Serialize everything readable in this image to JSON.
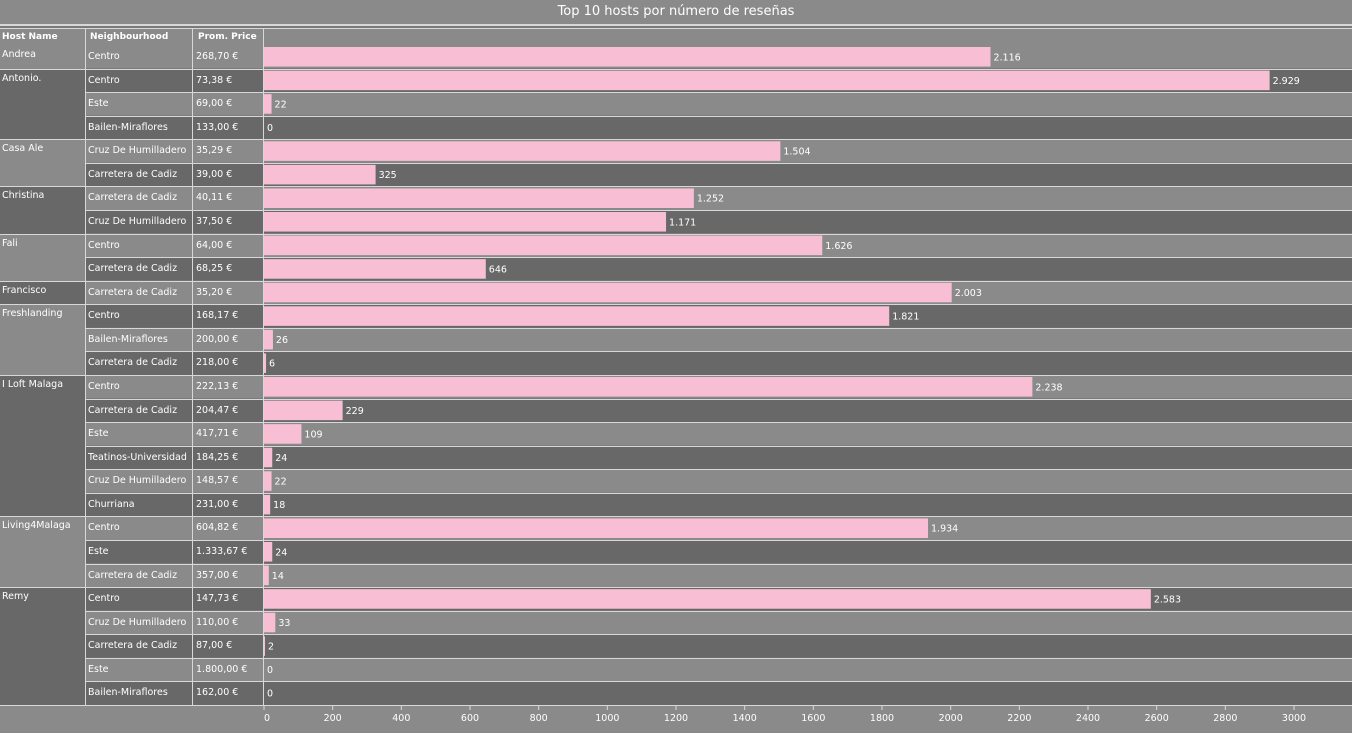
{
  "title": "Top 10 hosts por número de reseñas",
  "headers": {
    "host": "Host Name",
    "neighbourhood": "Neighbourhood",
    "price": "Prom. Price"
  },
  "colors": {
    "bar": "#f8bfd4",
    "band_light": "#8a8a8a",
    "band_dark": "#686868",
    "line": "#d8d8d8"
  },
  "chart_data": {
    "type": "bar",
    "orientation": "horizontal",
    "title": "Top 10 hosts por número de reseñas",
    "xlim": [
      0,
      3250
    ],
    "x_ticks": [
      0,
      200,
      400,
      600,
      800,
      1000,
      1200,
      1400,
      1600,
      1800,
      2000,
      2200,
      2400,
      2600,
      2800,
      3000
    ],
    "grid": false,
    "groups": [
      {
        "host": "Andrea",
        "rows": [
          {
            "neighbourhood": "Centro",
            "price": "268,70 €",
            "value": 2116,
            "label": "2.116"
          }
        ]
      },
      {
        "host": "Antonio.",
        "rows": [
          {
            "neighbourhood": "Centro",
            "price": "73,38 €",
            "value": 2929,
            "label": "2.929"
          },
          {
            "neighbourhood": "Este",
            "price": "69,00 €",
            "value": 22,
            "label": "22"
          },
          {
            "neighbourhood": "Bailen-Miraflores",
            "price": "133,00 €",
            "value": 0,
            "label": "0"
          }
        ]
      },
      {
        "host": "Casa Ale",
        "rows": [
          {
            "neighbourhood": "Cruz De Humilladero",
            "price": "35,29 €",
            "value": 1504,
            "label": "1.504"
          },
          {
            "neighbourhood": "Carretera de Cadiz",
            "price": "39,00 €",
            "value": 325,
            "label": "325"
          }
        ]
      },
      {
        "host": "Christina",
        "rows": [
          {
            "neighbourhood": "Carretera de Cadiz",
            "price": "40,11 €",
            "value": 1252,
            "label": "1.252"
          },
          {
            "neighbourhood": "Cruz De Humilladero",
            "price": "37,50 €",
            "value": 1171,
            "label": "1.171"
          }
        ]
      },
      {
        "host": "Fali",
        "rows": [
          {
            "neighbourhood": "Centro",
            "price": "64,00 €",
            "value": 1626,
            "label": "1.626"
          },
          {
            "neighbourhood": "Carretera de Cadiz",
            "price": "68,25 €",
            "value": 646,
            "label": "646"
          }
        ]
      },
      {
        "host": "Francisco",
        "rows": [
          {
            "neighbourhood": "Carretera de Cadiz",
            "price": "35,20 €",
            "value": 2003,
            "label": "2.003"
          }
        ]
      },
      {
        "host": "Freshlanding",
        "rows": [
          {
            "neighbourhood": "Centro",
            "price": "168,17 €",
            "value": 1821,
            "label": "1.821"
          },
          {
            "neighbourhood": "Bailen-Miraflores",
            "price": "200,00 €",
            "value": 26,
            "label": "26"
          },
          {
            "neighbourhood": "Carretera de Cadiz",
            "price": "218,00 €",
            "value": 6,
            "label": "6"
          }
        ]
      },
      {
        "host": "I Loft Malaga",
        "rows": [
          {
            "neighbourhood": "Centro",
            "price": "222,13 €",
            "value": 2238,
            "label": "2.238"
          },
          {
            "neighbourhood": "Carretera de Cadiz",
            "price": "204,47 €",
            "value": 229,
            "label": "229"
          },
          {
            "neighbourhood": "Este",
            "price": "417,71 €",
            "value": 109,
            "label": "109"
          },
          {
            "neighbourhood": "Teatinos-Universidad",
            "price": "184,25 €",
            "value": 24,
            "label": "24"
          },
          {
            "neighbourhood": "Cruz De Humilladero",
            "price": "148,57 €",
            "value": 22,
            "label": "22"
          },
          {
            "neighbourhood": "Churriana",
            "price": "231,00 €",
            "value": 18,
            "label": "18"
          }
        ]
      },
      {
        "host": "Living4Malaga",
        "rows": [
          {
            "neighbourhood": "Centro",
            "price": "604,82 €",
            "value": 1934,
            "label": "1.934"
          },
          {
            "neighbourhood": "Este",
            "price": "1.333,67 €",
            "value": 24,
            "label": "24"
          },
          {
            "neighbourhood": "Carretera de Cadiz",
            "price": "357,00 €",
            "value": 14,
            "label": "14"
          }
        ]
      },
      {
        "host": "Remy",
        "rows": [
          {
            "neighbourhood": "Centro",
            "price": "147,73 €",
            "value": 2583,
            "label": "2.583"
          },
          {
            "neighbourhood": "Cruz De Humilladero",
            "price": "110,00 €",
            "value": 33,
            "label": "33"
          },
          {
            "neighbourhood": "Carretera de Cadiz",
            "price": "87,00 €",
            "value": 2,
            "label": "2"
          },
          {
            "neighbourhood": "Este",
            "price": "1.800,00 €",
            "value": 0,
            "label": "0"
          },
          {
            "neighbourhood": "Bailen-Miraflores",
            "price": "162,00 €",
            "value": 0,
            "label": "0"
          }
        ]
      }
    ]
  }
}
